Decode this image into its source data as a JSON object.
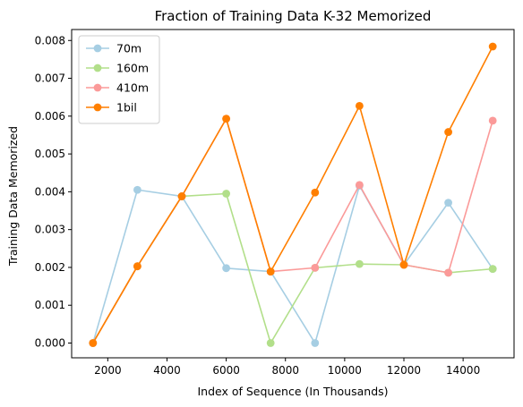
{
  "chart_data": {
    "type": "line",
    "title": "Fraction of Training Data K-32 Memorized",
    "xlabel": "Index of Sequence (In Thousands)",
    "ylabel": "Training Data Memorized",
    "xlim": [
      780,
      15720
    ],
    "ylim": [
      -0.00039,
      0.00829
    ],
    "xticks": [
      2000,
      4000,
      6000,
      8000,
      10000,
      12000,
      14000
    ],
    "xtick_labels": [
      "2000",
      "4000",
      "6000",
      "8000",
      "10000",
      "12000",
      "14000"
    ],
    "yticks": [
      0.0,
      0.001,
      0.002,
      0.003,
      0.004,
      0.005,
      0.006,
      0.007,
      0.008
    ],
    "ytick_labels": [
      "0.000",
      "0.001",
      "0.002",
      "0.003",
      "0.004",
      "0.005",
      "0.006",
      "0.007",
      "0.008"
    ],
    "grid": false,
    "legend_position": "top-left",
    "x": [
      1500,
      3000,
      4500,
      6000,
      7500,
      9000,
      10500,
      12000,
      13500,
      15000
    ],
    "series": [
      {
        "name": "70m",
        "color": "#a6cee3",
        "values": [
          0.0,
          0.00405,
          0.00388,
          0.00198,
          0.00189,
          0.0,
          0.00416,
          0.00207,
          0.00371,
          0.00196
        ]
      },
      {
        "name": "160m",
        "color": "#b2df8a",
        "values": [
          0.0,
          0.00203,
          0.00388,
          0.00395,
          0.0,
          0.00199,
          0.00209,
          0.00207,
          0.00186,
          0.00196
        ]
      },
      {
        "name": "410m",
        "color": "#fb9a99",
        "values": [
          0.0,
          0.00203,
          0.00388,
          0.00593,
          0.00189,
          0.00199,
          0.00418,
          0.00207,
          0.00186,
          0.00588
        ]
      },
      {
        "name": "1bil",
        "color": "#ff7f00",
        "values": [
          0.0,
          0.00203,
          0.00388,
          0.00593,
          0.00189,
          0.00398,
          0.00627,
          0.00207,
          0.00558,
          0.00784
        ]
      }
    ]
  }
}
